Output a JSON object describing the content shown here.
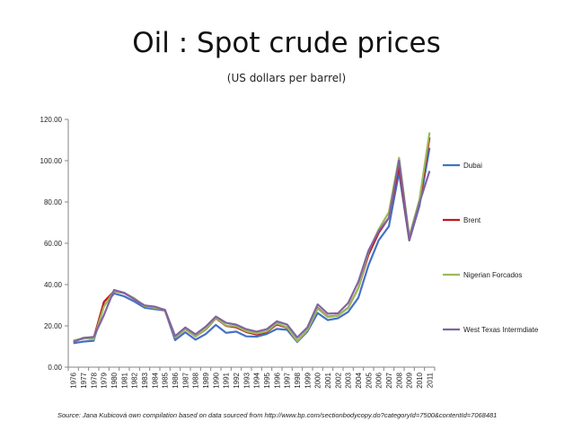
{
  "header": {
    "title": "Oil : Spot crude prices",
    "subtitle": "(US dollars per barrel)"
  },
  "footer": {
    "source": "Source: Jana Kubicová own compilation based on data sourced from http://www.bp.com/sectionbodycopy.do?categoryId=7500&contentId=7068481"
  },
  "chart_data": {
    "type": "line",
    "ylim": [
      0,
      120
    ],
    "yticks": [
      "0.00",
      "20.00",
      "40.00",
      "60.00",
      "80.00",
      "100.00",
      "120.00"
    ],
    "ytick_values": [
      0,
      20,
      40,
      60,
      80,
      100,
      120
    ],
    "grid": false,
    "legend": "right",
    "x": [
      "1976",
      "1977",
      "1978",
      "1979",
      "1980",
      "1981",
      "1982",
      "1983",
      "1984",
      "1985",
      "1986",
      "1987",
      "1988",
      "1989",
      "1990",
      "1991",
      "1992",
      "1993",
      "1994",
      "1995",
      "1996",
      "1997",
      "1998",
      "1999",
      "2000",
      "2001",
      "2002",
      "2003",
      "2004",
      "2005",
      "2006",
      "2007",
      "2008",
      "2009",
      "2010",
      "2011"
    ],
    "series": [
      {
        "name": "Dubai",
        "color": "#4472c4",
        "values": [
          11.6,
          12.4,
          12.8,
          29.8,
          35.7,
          34.3,
          31.8,
          28.8,
          28.1,
          27.5,
          13.1,
          16.9,
          13.3,
          16.0,
          20.5,
          16.6,
          17.2,
          14.9,
          14.8,
          16.1,
          18.5,
          18.1,
          12.2,
          17.3,
          26.2,
          22.8,
          23.7,
          26.8,
          33.6,
          49.4,
          61.5,
          68.2,
          94.3,
          61.4,
          78.1,
          106.2
        ]
      },
      {
        "name": "Brent",
        "color": "#c0171d",
        "values": [
          12.8,
          13.9,
          14.0,
          31.6,
          36.8,
          35.9,
          33.0,
          29.6,
          28.8,
          27.6,
          14.4,
          18.4,
          14.9,
          18.2,
          23.7,
          20.0,
          19.3,
          17.0,
          15.8,
          17.0,
          20.7,
          19.1,
          12.7,
          17.9,
          28.7,
          24.4,
          25.0,
          28.8,
          38.3,
          54.5,
          65.1,
          72.4,
          97.3,
          61.7,
          79.5,
          111.3
        ]
      },
      {
        "name": "Nigerian Forcados",
        "color": "#9bbb59",
        "values": [
          12.9,
          14.0,
          13.5,
          29.3,
          36.9,
          36.0,
          33.3,
          29.5,
          28.7,
          27.8,
          14.5,
          18.4,
          15.0,
          18.4,
          23.9,
          20.2,
          19.8,
          17.4,
          16.3,
          17.3,
          21.2,
          19.3,
          12.6,
          18.0,
          28.4,
          24.2,
          25.0,
          28.7,
          38.3,
          56.0,
          66.8,
          75.1,
          101.4,
          63.4,
          81.1,
          113.7
        ]
      },
      {
        "name": "West Texas Intermdiate",
        "color": "#8064a2",
        "values": [
          12.2,
          14.2,
          14.6,
          25.2,
          37.4,
          36.0,
          32.9,
          29.9,
          29.3,
          27.7,
          15.1,
          19.2,
          15.9,
          19.6,
          24.5,
          21.5,
          20.6,
          18.4,
          17.2,
          18.4,
          22.2,
          20.6,
          14.4,
          19.3,
          30.4,
          25.9,
          26.1,
          31.1,
          41.4,
          56.5,
          66.0,
          72.3,
          100.1,
          61.9,
          79.5,
          95.0
        ]
      }
    ]
  }
}
